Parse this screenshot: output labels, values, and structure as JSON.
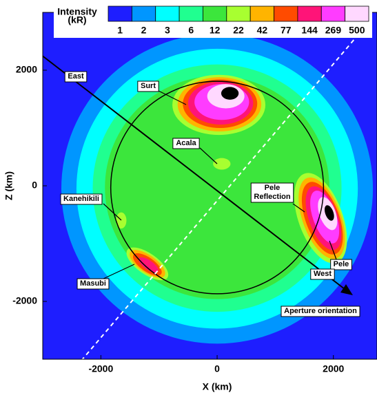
{
  "chart_data": {
    "type": "contour",
    "xlabel": "X (km)",
    "ylabel": "Z (km)",
    "xlim": [
      -3000,
      2750
    ],
    "ylim": [
      -3000,
      3000
    ],
    "xticks": [
      -2000,
      0,
      2000
    ],
    "yticks": [
      -2000,
      0,
      2000
    ],
    "colorbar": {
      "title": [
        "Intensity",
        "(kR)"
      ],
      "levels": [
        1,
        2,
        3,
        6,
        12,
        22,
        42,
        77,
        144,
        269,
        500
      ],
      "colors": [
        "#1e1eff",
        "#0096ff",
        "#00ffff",
        "#20ff90",
        "#3ce63c",
        "#a8ff30",
        "#ffb400",
        "#ff4b00",
        "#ff1478",
        "#ff3cff",
        "#ffd8ff"
      ]
    },
    "annotations": [
      {
        "lines": [
          "East"
        ]
      },
      {
        "lines": [
          "Surt"
        ]
      },
      {
        "lines": [
          "Acala"
        ]
      },
      {
        "lines": [
          "Kanehikili"
        ]
      },
      {
        "lines": [
          "Pele",
          "Reflection"
        ]
      },
      {
        "lines": [
          "Pele"
        ]
      },
      {
        "lines": [
          "West"
        ]
      },
      {
        "lines": [
          "Masubi"
        ]
      },
      {
        "lines": [
          "Aperture orientation"
        ]
      }
    ]
  }
}
